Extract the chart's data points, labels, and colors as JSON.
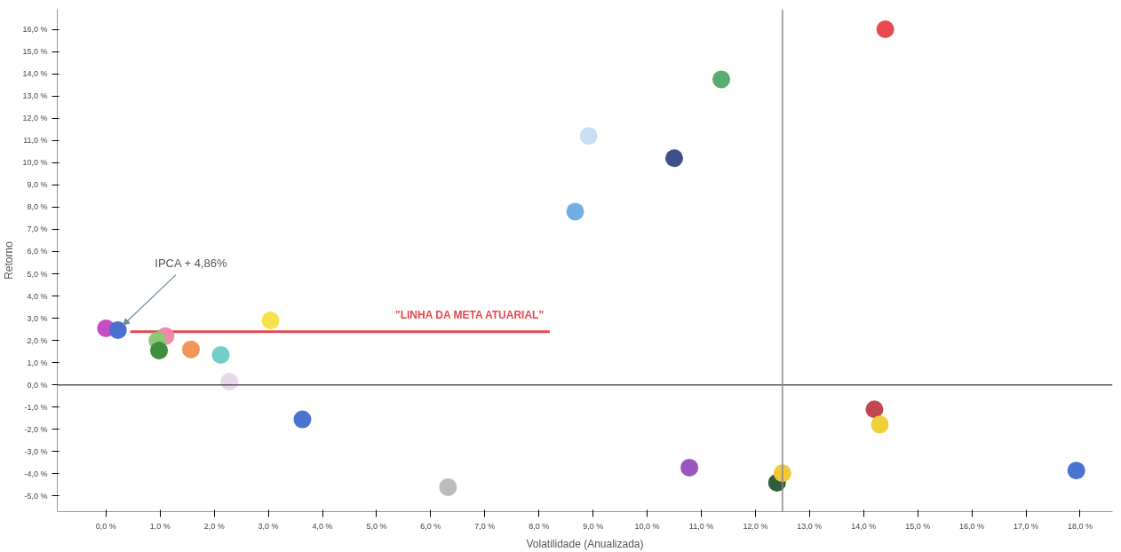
{
  "chart_data": {
    "type": "scatter",
    "xlabel": "Volatilidade (Anualizada)",
    "ylabel": "Retorno",
    "grid": false,
    "xlim": [
      -0.9,
      18.6
    ],
    "ylim": [
      -5.7,
      16.9
    ],
    "xticks": [
      {
        "value": 0,
        "label": "0,0 %"
      },
      {
        "value": 1,
        "label": "1,0 %"
      },
      {
        "value": 2,
        "label": "2,0 %"
      },
      {
        "value": 3,
        "label": "3,0 %"
      },
      {
        "value": 4,
        "label": "4,0 %"
      },
      {
        "value": 5,
        "label": "5,0 %"
      },
      {
        "value": 6,
        "label": "6,0 %"
      },
      {
        "value": 7,
        "label": "7,0 %"
      },
      {
        "value": 8,
        "label": "8,0 %"
      },
      {
        "value": 9,
        "label": "9,0 %"
      },
      {
        "value": 10,
        "label": "10,0 %"
      },
      {
        "value": 11,
        "label": "11,0 %"
      },
      {
        "value": 12,
        "label": "12,0 %"
      },
      {
        "value": 13,
        "label": "13,0 %"
      },
      {
        "value": 14,
        "label": "14,0 %"
      },
      {
        "value": 15,
        "label": "15,0 %"
      },
      {
        "value": 16,
        "label": "16,0 %"
      },
      {
        "value": 17,
        "label": "17,0 %"
      },
      {
        "value": 18,
        "label": "18,0 %"
      }
    ],
    "yticks": [
      {
        "value": -5,
        "label": "-5,0 %"
      },
      {
        "value": -4,
        "label": "-4,0 %"
      },
      {
        "value": -3,
        "label": "-3,0 %"
      },
      {
        "value": -2,
        "label": "-2,0 %"
      },
      {
        "value": -1,
        "label": "-1,0 %"
      },
      {
        "value": 0,
        "label": "0,0 %"
      },
      {
        "value": 1,
        "label": "1,0 %"
      },
      {
        "value": 2,
        "label": "2,0 %"
      },
      {
        "value": 3,
        "label": "3,0 %"
      },
      {
        "value": 4,
        "label": "4,0 %"
      },
      {
        "value": 5,
        "label": "5,0 %"
      },
      {
        "value": 6,
        "label": "6,0 %"
      },
      {
        "value": 7,
        "label": "7,0 %"
      },
      {
        "value": 8,
        "label": "8,0 %"
      },
      {
        "value": 9,
        "label": "9,0 %"
      },
      {
        "value": 10,
        "label": "10,0 %"
      },
      {
        "value": 11,
        "label": "11,0 %"
      },
      {
        "value": 12,
        "label": "12,0 %"
      },
      {
        "value": 13,
        "label": "13,0 %"
      },
      {
        "value": 14,
        "label": "14,0 %"
      },
      {
        "value": 15,
        "label": "15,0 %"
      },
      {
        "value": 16,
        "label": "16,0 %"
      }
    ],
    "ref_lines": [
      {
        "axis": "y",
        "value": 0,
        "color": "#555555"
      },
      {
        "axis": "x",
        "value": 12.5,
        "color": "#888888"
      }
    ],
    "annotations": [
      {
        "text": "IPCA + 4,86%",
        "x": 0.22,
        "y": 2.47
      }
    ],
    "series": [
      {
        "type": "line",
        "name": "\"LINHA DA META ATUARIAL\"",
        "color": "#e8474f",
        "x": [
          0.45,
          8.2
        ],
        "values": [
          2.4,
          2.4
        ]
      },
      {
        "marker": "circle",
        "x": [
          0.0,
          0.22,
          1.1,
          0.95,
          0.98,
          1.57,
          2.12,
          2.28,
          3.04,
          3.63,
          6.32,
          8.67,
          8.92,
          10.5,
          11.37,
          14.4,
          10.78,
          12.4,
          12.5,
          14.2,
          14.3,
          17.93
        ],
        "values": [
          2.55,
          2.47,
          2.2,
          2.0,
          1.55,
          1.6,
          1.35,
          0.15,
          2.9,
          -1.55,
          -4.6,
          7.8,
          11.2,
          10.2,
          13.75,
          16.0,
          -3.72,
          -4.4,
          -3.97,
          -1.1,
          -1.78,
          -3.85
        ],
        "colors": [
          "#c44fc4",
          "#4a6fd0",
          "#f08aa8",
          "#8cc87a",
          "#3f8f3f",
          "#f2955a",
          "#72cfc8",
          "#e8d8ea",
          "#f7e04a",
          "#4a74d0",
          "#bcbcbc",
          "#72aee6",
          "#c8def5",
          "#3f4f8a",
          "#5aac6e",
          "#e8484e",
          "#9a55c0",
          "#2f5f3a",
          "#f5c83a",
          "#c2474f",
          "#efd03a",
          "#4a74d0"
        ]
      }
    ]
  }
}
